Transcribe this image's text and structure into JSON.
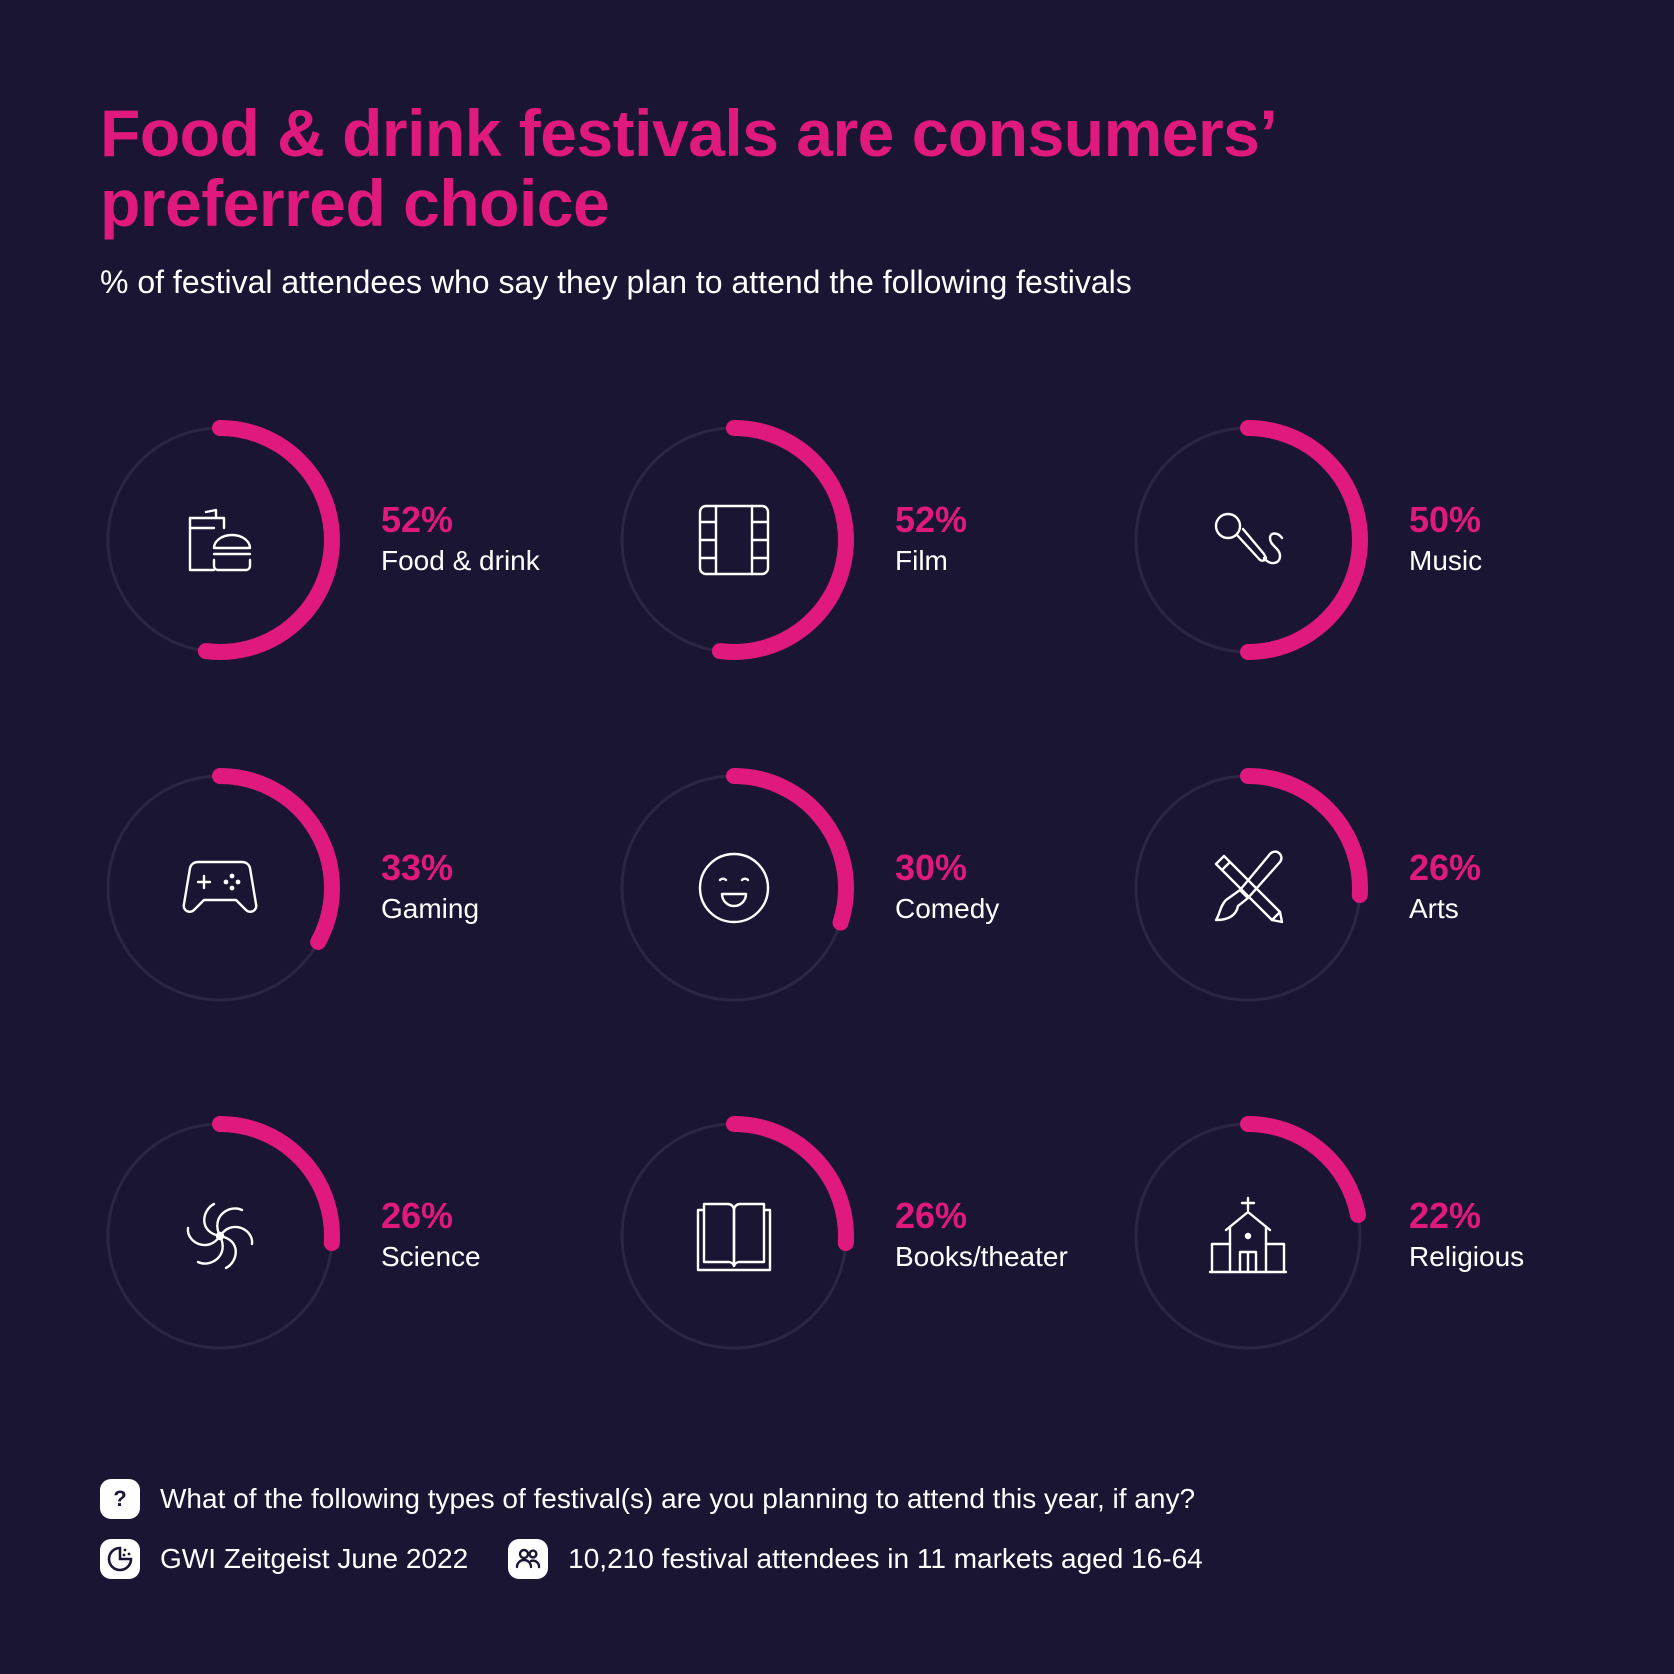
{
  "title": "Food & drink festivals are consumers’ preferred choice",
  "subtitle": "% of festival attendees who say they plan to attend the following festivals",
  "colors": {
    "background": "#1a1533",
    "accent": "#e0197d",
    "track": "#2a2742",
    "text": "#ffffff"
  },
  "chart_data": {
    "type": "radial-progress",
    "title": "Food & drink festivals are consumers’ preferred choice",
    "subtitle": "% of festival attendees who say they plan to attend the following festivals",
    "unit": "%",
    "max": 100,
    "categories": [
      "Food & drink",
      "Film",
      "Music",
      "Gaming",
      "Comedy",
      "Arts",
      "Science",
      "Books/theater",
      "Religious"
    ],
    "values": [
      52,
      52,
      50,
      33,
      30,
      26,
      26,
      26,
      22
    ],
    "items": [
      {
        "label": "Food & drink",
        "value": 52,
        "value_label": "52%",
        "icon": "food-drink-icon"
      },
      {
        "label": "Film",
        "value": 52,
        "value_label": "52%",
        "icon": "film-icon"
      },
      {
        "label": "Music",
        "value": 50,
        "value_label": "50%",
        "icon": "microphone-icon"
      },
      {
        "label": "Gaming",
        "value": 33,
        "value_label": "33%",
        "icon": "gamepad-icon"
      },
      {
        "label": "Comedy",
        "value": 30,
        "value_label": "30%",
        "icon": "smiley-icon"
      },
      {
        "label": "Arts",
        "value": 26,
        "value_label": "26%",
        "icon": "pencil-brush-icon"
      },
      {
        "label": "Science",
        "value": 26,
        "value_label": "26%",
        "icon": "atom-icon"
      },
      {
        "label": "Books/theater",
        "value": 26,
        "value_label": "26%",
        "icon": "book-icon"
      },
      {
        "label": "Religious",
        "value": 22,
        "value_label": "22%",
        "icon": "church-icon"
      }
    ]
  },
  "footer": {
    "question_icon": "question-icon",
    "question": "What of the following types of festival(s) are you planning to attend this year, if any?",
    "source_icon": "gwi-logo-icon",
    "source": "GWI Zeitgeist June 2022",
    "sample_icon": "people-icon",
    "sample": "10,210 festival attendees in 11 markets aged 16-64"
  }
}
